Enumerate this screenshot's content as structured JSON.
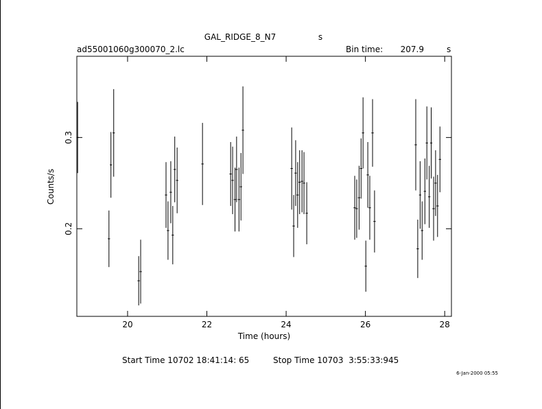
{
  "chart_data": {
    "type": "errorbar",
    "title": "GAL_RIDGE_8_N7",
    "title_unit": "s",
    "file_name": "ad55001060g300070_2.lc",
    "bin_time_label": "Bin time:",
    "bin_time": 207.9,
    "bin_time_unit": "s",
    "xlabel": "Time (hours)",
    "ylabel": "Counts/s",
    "start_time": "Start Time 10702 18:41:14: 65",
    "stop_time": "Stop Time 10703  3:55:33:945",
    "timestamp": "6-Jan-2000 05:55",
    "color": "#000000",
    "x": [
      18.74,
      19.53,
      19.58,
      19.65,
      20.28,
      20.33,
      20.97,
      21.02,
      21.09,
      21.14,
      21.19,
      21.25,
      21.89,
      22.6,
      22.65,
      22.71,
      22.75,
      22.81,
      22.86,
      22.91,
      24.14,
      24.19,
      24.24,
      24.29,
      24.34,
      24.4,
      24.45,
      24.52,
      25.73,
      25.78,
      25.84,
      25.89,
      25.94,
      26.01,
      26.06,
      26.11,
      26.18,
      26.23,
      27.27,
      27.32,
      27.38,
      27.43,
      27.5,
      27.55,
      27.61,
      27.66,
      27.72,
      27.77,
      27.82,
      27.88
    ],
    "values": [
      0.3,
      0.189,
      0.27,
      0.305,
      0.143,
      0.153,
      0.237,
      0.198,
      0.24,
      0.193,
      0.265,
      0.253,
      0.271,
      0.26,
      0.253,
      0.232,
      0.265,
      0.232,
      0.246,
      0.308,
      0.266,
      0.203,
      0.261,
      0.237,
      0.251,
      0.252,
      0.25,
      0.217,
      0.223,
      0.222,
      0.234,
      0.266,
      0.305,
      0.159,
      0.259,
      0.223,
      0.305,
      0.208,
      0.292,
      0.178,
      0.237,
      0.198,
      0.241,
      0.294,
      0.235,
      0.294,
      0.222,
      0.25,
      0.225,
      0.276
    ],
    "errors": [
      0.039,
      0.031,
      0.036,
      0.048,
      0.027,
      0.035,
      0.036,
      0.032,
      0.034,
      0.032,
      0.036,
      0.036,
      0.045,
      0.035,
      0.037,
      0.035,
      0.036,
      0.035,
      0.037,
      0.048,
      0.045,
      0.034,
      0.036,
      0.036,
      0.035,
      0.034,
      0.034,
      0.034,
      0.035,
      0.032,
      0.035,
      0.033,
      0.039,
      0.028,
      0.036,
      0.035,
      0.037,
      0.034,
      0.05,
      0.032,
      0.037,
      0.032,
      0.036,
      0.04,
      0.034,
      0.039,
      0.035,
      0.036,
      0.034,
      0.036
    ],
    "xlim": [
      18.72,
      28.17
    ],
    "ylim": [
      0.104,
      0.389
    ],
    "xticks": [
      20,
      22,
      24,
      26,
      28
    ],
    "yticks": [
      0.2,
      0.3
    ]
  }
}
